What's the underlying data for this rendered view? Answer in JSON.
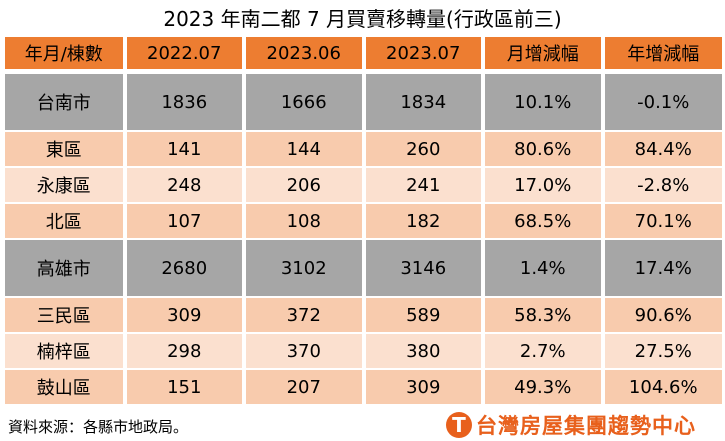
{
  "title": "2023 年南二都 7 月買賣移轉量(行政區前三)",
  "table": {
    "headers": [
      "年月/棟數",
      "2022.07",
      "2023.06",
      "2023.07",
      "月增減幅",
      "年增減幅"
    ],
    "rows": [
      {
        "type": "city",
        "cells": [
          "台南市",
          "1836",
          "1666",
          "1834",
          "10.1%",
          "-0.1%"
        ]
      },
      {
        "type": "d1",
        "cells": [
          "東區",
          "141",
          "144",
          "260",
          "80.6%",
          "84.4%"
        ]
      },
      {
        "type": "d2",
        "cells": [
          "永康區",
          "248",
          "206",
          "241",
          "17.0%",
          "-2.8%"
        ]
      },
      {
        "type": "d1",
        "cells": [
          "北區",
          "107",
          "108",
          "182",
          "68.5%",
          "70.1%"
        ]
      },
      {
        "type": "city",
        "cells": [
          "高雄市",
          "2680",
          "3102",
          "3146",
          "1.4%",
          "17.4%"
        ]
      },
      {
        "type": "d1",
        "cells": [
          "三民區",
          "309",
          "372",
          "589",
          "58.3%",
          "90.6%"
        ]
      },
      {
        "type": "d2",
        "cells": [
          "楠梓區",
          "298",
          "370",
          "380",
          "2.7%",
          "27.5%"
        ]
      },
      {
        "type": "d1",
        "cells": [
          "鼓山區",
          "151",
          "207",
          "309",
          "49.3%",
          "104.6%"
        ]
      }
    ]
  },
  "footer": {
    "source": "資料來源：各縣市地政局。",
    "logo_text": "台灣房屋集團趨勢中心",
    "logo_icon": "T"
  },
  "colors": {
    "header": "#ED7D31",
    "city_row": "#A6A6A6",
    "district_row": "#F8CBAD",
    "brand": "#E8601C"
  }
}
